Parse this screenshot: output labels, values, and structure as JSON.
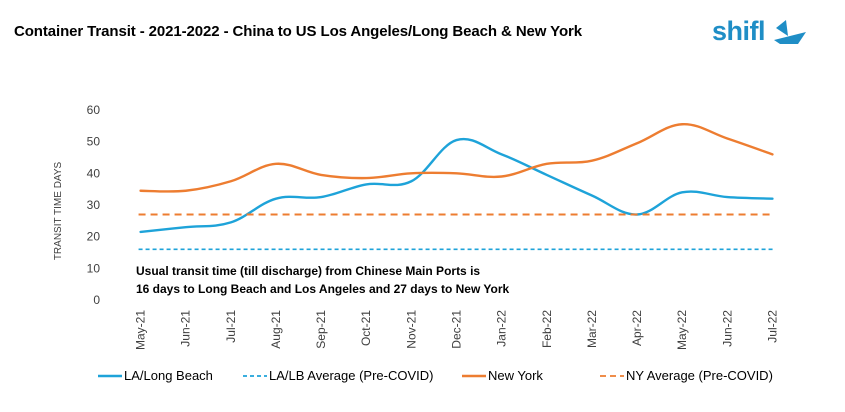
{
  "header": {
    "title": "Container Transit - 2021-2022  - China to US Los Angeles/Long Beach & New York",
    "logo_text": "shifl",
    "brand_color": "#1f8ec6"
  },
  "chart_data": {
    "type": "line",
    "title": "Container Transit - 2021-2022  - China to US Los Angeles/Long Beach & New York",
    "xlabel": "",
    "ylabel": "TRANSIT TIME DAYS",
    "ylim": [
      0,
      60
    ],
    "yticks": [
      0,
      10,
      20,
      30,
      40,
      50,
      60
    ],
    "categories": [
      "May-21",
      "Jun-21",
      "Jul-21",
      "Aug-21",
      "Sep-21",
      "Oct-21",
      "Nov-21",
      "Dec-21",
      "Jan-22",
      "Feb-22",
      "Mar-22",
      "Apr-22",
      "May-22",
      "Jun-22",
      "Jul-22"
    ],
    "grid": false,
    "legend_position": "bottom",
    "series": [
      {
        "name": "LA/Long Beach",
        "style": "solid",
        "color": "#1ea3d9",
        "values": [
          21.5,
          23,
          24.5,
          32,
          32.5,
          36.5,
          37.5,
          50.5,
          46,
          39.5,
          33,
          27,
          34,
          32.5,
          32
        ]
      },
      {
        "name": "LA/LB Average (Pre-COVID)",
        "style": "dashed",
        "color": "#1ea3d9",
        "values": [
          16,
          16,
          16,
          16,
          16,
          16,
          16,
          16,
          16,
          16,
          16,
          16,
          16,
          16,
          16
        ]
      },
      {
        "name": "New York",
        "style": "solid",
        "color": "#ed7d31",
        "values": [
          34.5,
          34.5,
          37.5,
          43,
          39.5,
          38.5,
          40,
          40,
          39,
          43,
          44,
          49.5,
          55.5,
          51,
          46
        ]
      },
      {
        "name": "NY Average (Pre-COVID)",
        "style": "dashed",
        "color": "#ed7d31",
        "values": [
          27,
          27,
          27,
          27,
          27,
          27,
          27,
          27,
          27,
          27,
          27,
          27,
          27,
          27,
          27
        ]
      }
    ],
    "annotations": [
      "Usual transit time (till discharge) from Chinese Main Ports is",
      "16 days to Long Beach and Los Angeles and 27 days to New York"
    ]
  }
}
